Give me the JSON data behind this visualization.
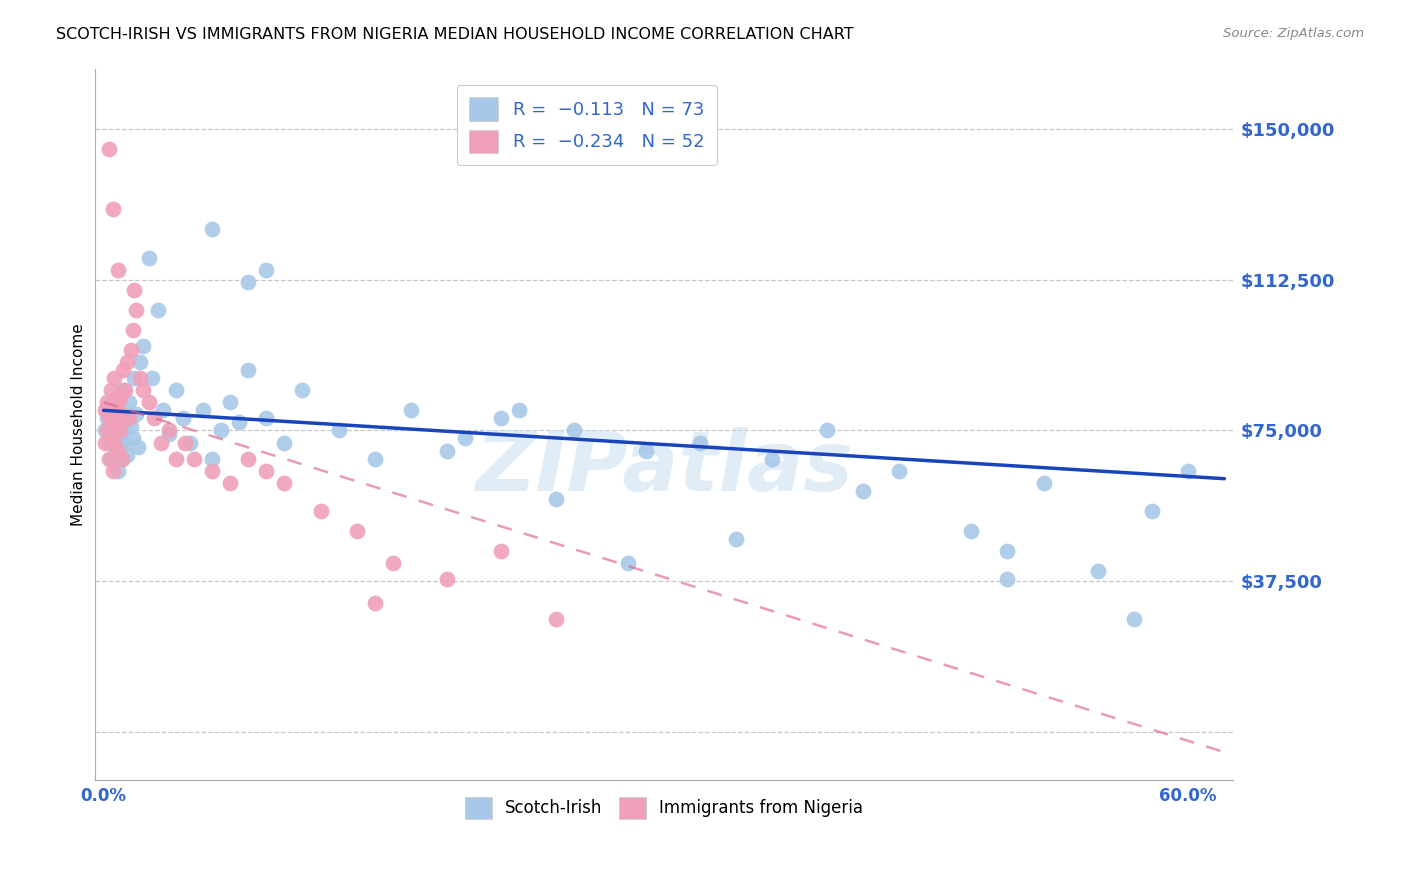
{
  "title": "SCOTCH-IRISH VS IMMIGRANTS FROM NIGERIA MEDIAN HOUSEHOLD INCOME CORRELATION CHART",
  "source": "Source: ZipAtlas.com",
  "ylabel": "Median Household Income",
  "yticks": [
    0,
    37500,
    75000,
    112500,
    150000
  ],
  "ytick_labels": [
    "",
    "$37,500",
    "$75,000",
    "$112,500",
    "$150,000"
  ],
  "ylim": [
    -12000,
    165000
  ],
  "xlim": [
    -0.005,
    0.625
  ],
  "blue_color": "#a8c8e8",
  "pink_color": "#f0a0b8",
  "blue_line_color": "#1a44bb",
  "pink_line_color": "#dd6688",
  "grid_color": "#c8c8c8",
  "tick_label_color": "#3366cc",
  "axis_color": "#aaaaaa",
  "background_color": "#ffffff",
  "watermark": "ZIPatlas",
  "watermark_color": "#c8dff0",
  "scotch_irish_x": [
    0.001,
    0.002,
    0.003,
    0.003,
    0.004,
    0.005,
    0.005,
    0.006,
    0.007,
    0.007,
    0.008,
    0.008,
    0.009,
    0.009,
    0.01,
    0.01,
    0.011,
    0.011,
    0.012,
    0.013,
    0.014,
    0.015,
    0.016,
    0.017,
    0.018,
    0.019,
    0.02,
    0.022,
    0.025,
    0.027,
    0.03,
    0.033,
    0.036,
    0.04,
    0.044,
    0.048,
    0.055,
    0.06,
    0.065,
    0.07,
    0.075,
    0.08,
    0.09,
    0.1,
    0.11,
    0.13,
    0.15,
    0.17,
    0.2,
    0.23,
    0.26,
    0.3,
    0.33,
    0.37,
    0.4,
    0.44,
    0.48,
    0.5,
    0.52,
    0.55,
    0.57,
    0.58,
    0.6,
    0.29,
    0.35,
    0.42,
    0.19,
    0.22,
    0.25,
    0.08,
    0.09,
    0.06,
    0.5
  ],
  "scotch_irish_y": [
    75000,
    78000,
    72000,
    80000,
    68000,
    76000,
    82000,
    74000,
    70000,
    83000,
    77000,
    65000,
    78000,
    72000,
    80000,
    68000,
    75000,
    85000,
    72000,
    69000,
    82000,
    76000,
    73000,
    88000,
    79000,
    71000,
    92000,
    96000,
    118000,
    88000,
    105000,
    80000,
    74000,
    85000,
    78000,
    72000,
    80000,
    68000,
    75000,
    82000,
    77000,
    90000,
    78000,
    72000,
    85000,
    75000,
    68000,
    80000,
    73000,
    80000,
    75000,
    70000,
    72000,
    68000,
    75000,
    65000,
    50000,
    45000,
    62000,
    40000,
    28000,
    55000,
    65000,
    42000,
    48000,
    60000,
    70000,
    78000,
    58000,
    112000,
    115000,
    125000,
    38000
  ],
  "nigeria_x": [
    0.001,
    0.001,
    0.002,
    0.002,
    0.003,
    0.003,
    0.004,
    0.004,
    0.005,
    0.005,
    0.006,
    0.006,
    0.007,
    0.007,
    0.008,
    0.008,
    0.009,
    0.009,
    0.01,
    0.01,
    0.011,
    0.012,
    0.013,
    0.014,
    0.015,
    0.016,
    0.017,
    0.018,
    0.02,
    0.022,
    0.025,
    0.028,
    0.032,
    0.036,
    0.04,
    0.045,
    0.05,
    0.06,
    0.07,
    0.08,
    0.09,
    0.1,
    0.12,
    0.14,
    0.16,
    0.19,
    0.22,
    0.25,
    0.15,
    0.005,
    0.003,
    0.008
  ],
  "nigeria_y": [
    80000,
    72000,
    82000,
    75000,
    78000,
    68000,
    85000,
    73000,
    77000,
    65000,
    88000,
    72000,
    82000,
    76000,
    80000,
    70000,
    83000,
    75000,
    78000,
    68000,
    90000,
    85000,
    92000,
    78000,
    95000,
    100000,
    110000,
    105000,
    88000,
    85000,
    82000,
    78000,
    72000,
    75000,
    68000,
    72000,
    68000,
    65000,
    62000,
    68000,
    65000,
    62000,
    55000,
    50000,
    42000,
    38000,
    45000,
    28000,
    32000,
    130000,
    145000,
    115000
  ],
  "si_trend_x": [
    0.0,
    0.62
  ],
  "si_trend_y": [
    80000,
    63000
  ],
  "ng_trend_x": [
    0.0,
    0.62
  ],
  "ng_trend_y": [
    82000,
    -5000
  ]
}
